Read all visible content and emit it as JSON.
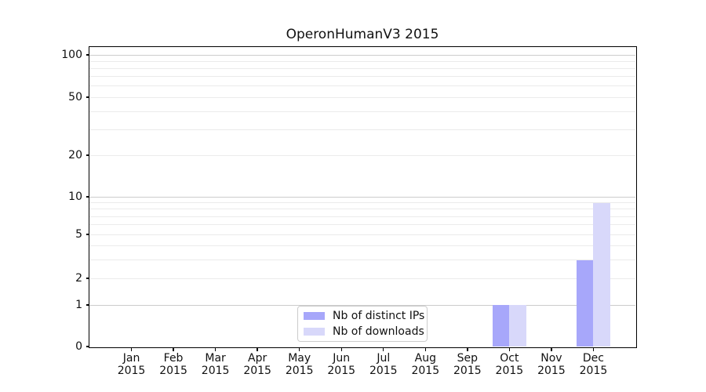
{
  "title": "OperonHumanV3 2015",
  "legend": {
    "items": [
      {
        "label": "Nb of distinct IPs",
        "color": "#a7a7fa"
      },
      {
        "label": "Nb of downloads",
        "color": "#d8d8fa"
      }
    ]
  },
  "colors": {
    "bar_distinct_ips": "#a7a7fa",
    "bar_downloads": "#d8d8fa",
    "grid_major": "#cccccc",
    "grid_minor": "#ebebeb",
    "axis": "#000000",
    "background": "#ffffff"
  },
  "chart_data": {
    "type": "bar",
    "title": "OperonHumanV3 2015",
    "categories": [
      "Jan 2015",
      "Feb 2015",
      "Mar 2015",
      "Apr 2015",
      "May 2015",
      "Jun 2015",
      "Jul 2015",
      "Aug 2015",
      "Sep 2015",
      "Oct 2015",
      "Nov 2015",
      "Dec 2015"
    ],
    "series": [
      {
        "name": "Nb of distinct IPs",
        "color": "#a7a7fa",
        "values": [
          0,
          0,
          0,
          0,
          0,
          0,
          0,
          0,
          0,
          1,
          0,
          3
        ]
      },
      {
        "name": "Nb of downloads",
        "color": "#d8d8fa",
        "values": [
          0,
          0,
          0,
          0,
          0,
          0,
          0,
          0,
          0,
          1,
          0,
          9
        ]
      }
    ],
    "xlabel": "",
    "ylabel": "",
    "yscale": "log1p",
    "ylim": [
      0,
      115
    ],
    "y_major_ticks": [
      0,
      1,
      2,
      5,
      10,
      20,
      50,
      100
    ],
    "y_minor_gridlines": [
      3,
      4,
      6,
      7,
      8,
      9,
      30,
      40,
      60,
      70,
      80,
      90
    ],
    "grid": "horizontal",
    "legend_position": "lower center"
  }
}
